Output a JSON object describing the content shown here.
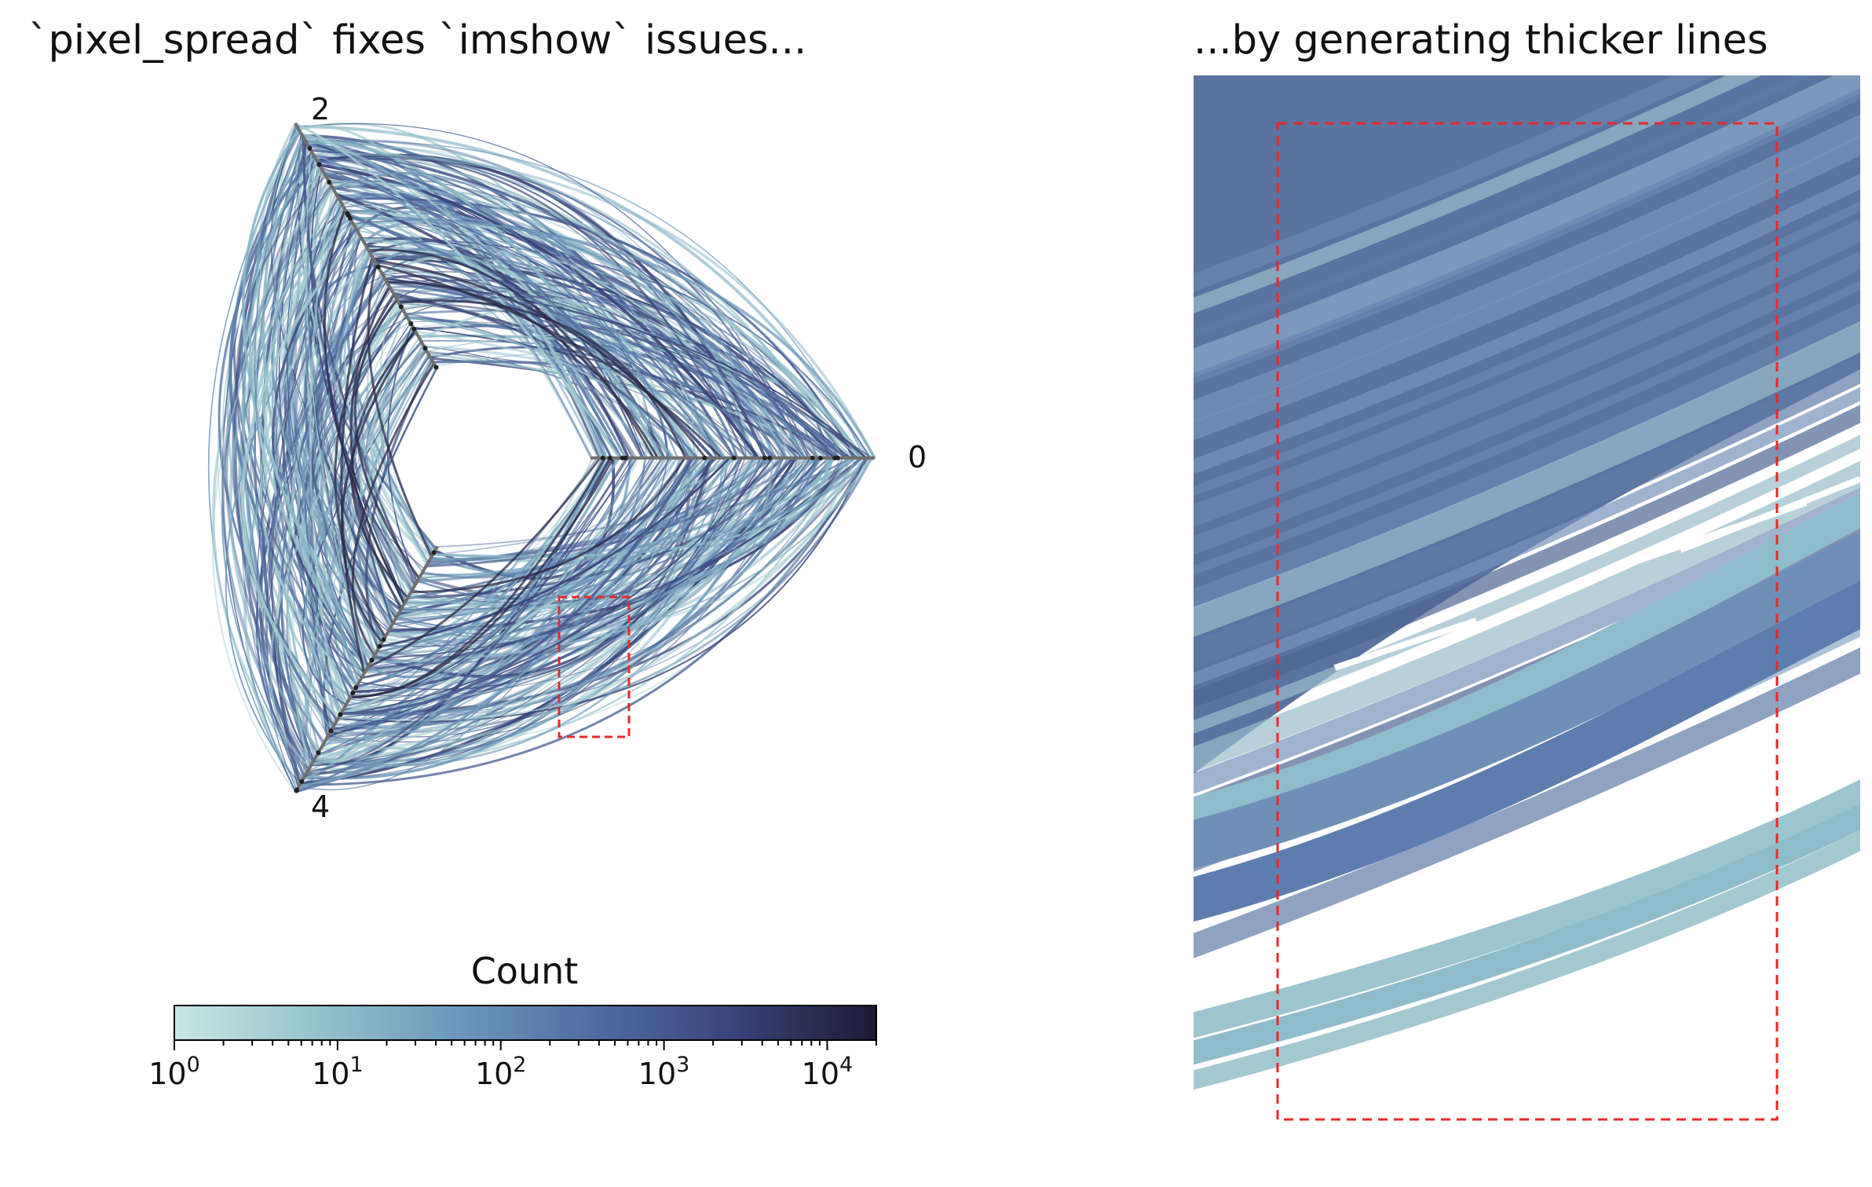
{
  "chart_data": [
    {
      "type": "hive_plot",
      "title": "`pixel_spread` fixes `imshow` issues...",
      "axis_labels": [
        "0",
        "2",
        "4"
      ],
      "highlight_box_color": "#e8282c",
      "colorbar": {
        "label": "Count",
        "scale": "log",
        "range": [
          1,
          20000
        ],
        "ticks": [
          {
            "base": "10",
            "exp": "0"
          },
          {
            "base": "10",
            "exp": "1"
          },
          {
            "base": "10",
            "exp": "2"
          },
          {
            "base": "10",
            "exp": "3"
          },
          {
            "base": "10",
            "exp": "4"
          }
        ],
        "colors": [
          "#c5e3e0",
          "#8fbccb",
          "#6b93b7",
          "#4e6a9a",
          "#383f6d",
          "#1d1b33"
        ]
      }
    },
    {
      "type": "heatmap",
      "title": "...by generating thicker lines",
      "description_colors": {
        "dense": "#4e6a9a",
        "light": "#8fbccb",
        "empty": "#ffffff"
      },
      "highlight_box_color": "#e8282c"
    }
  ]
}
